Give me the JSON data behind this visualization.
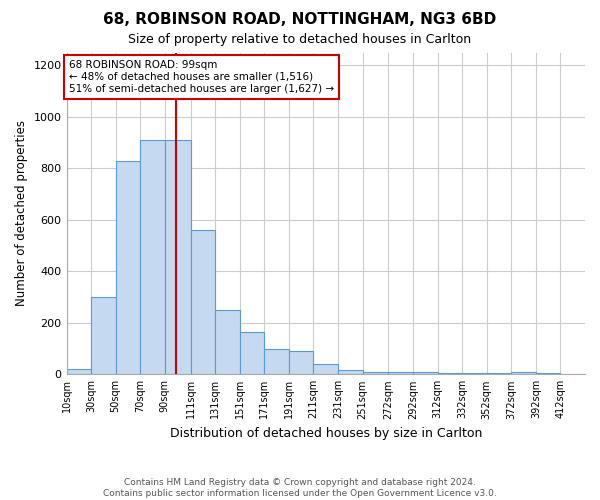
{
  "title1": "68, ROBINSON ROAD, NOTTINGHAM, NG3 6BD",
  "title2": "Size of property relative to detached houses in Carlton",
  "xlabel": "Distribution of detached houses by size in Carlton",
  "ylabel": "Number of detached properties",
  "footer": "Contains HM Land Registry data © Crown copyright and database right 2024.\nContains public sector information licensed under the Open Government Licence v3.0.",
  "bar_lefts": [
    10,
    30,
    50,
    70,
    90,
    111,
    131,
    151,
    171,
    191,
    211,
    231,
    251,
    272,
    292,
    312,
    332,
    352,
    372,
    392
  ],
  "bar_rights": [
    30,
    50,
    70,
    90,
    111,
    131,
    151,
    171,
    191,
    211,
    231,
    251,
    272,
    292,
    312,
    332,
    352,
    372,
    392,
    412
  ],
  "bar_heights": [
    22,
    300,
    830,
    910,
    910,
    560,
    250,
    165,
    100,
    90,
    40,
    18,
    10,
    10,
    8,
    5,
    5,
    5,
    10,
    5
  ],
  "tick_positions": [
    10,
    30,
    50,
    70,
    90,
    111,
    131,
    151,
    171,
    191,
    211,
    231,
    251,
    272,
    292,
    312,
    332,
    352,
    372,
    392,
    412
  ],
  "tick_labels": [
    "10sqm",
    "30sqm",
    "50sqm",
    "70sqm",
    "90sqm",
    "111sqm",
    "131sqm",
    "151sqm",
    "171sqm",
    "191sqm",
    "211sqm",
    "231sqm",
    "251sqm",
    "272sqm",
    "292sqm",
    "312sqm",
    "332sqm",
    "352sqm",
    "372sqm",
    "392sqm",
    "412sqm"
  ],
  "bar_color": "#c5d9f0",
  "bar_edge_color": "#5b9bd5",
  "property_size": 99,
  "vline_color": "#cc0000",
  "annotation_text": "68 ROBINSON ROAD: 99sqm\n← 48% of detached houses are smaller (1,516)\n51% of semi-detached houses are larger (1,627) →",
  "annotation_box_color": "#ffffff",
  "annotation_border_color": "#cc0000",
  "ylim": [
    0,
    1250
  ],
  "yticks": [
    0,
    200,
    400,
    600,
    800,
    1000,
    1200
  ],
  "bg_color": "#ffffff",
  "grid_color": "#cccccc",
  "xlim_left": 10,
  "xlim_right": 432
}
